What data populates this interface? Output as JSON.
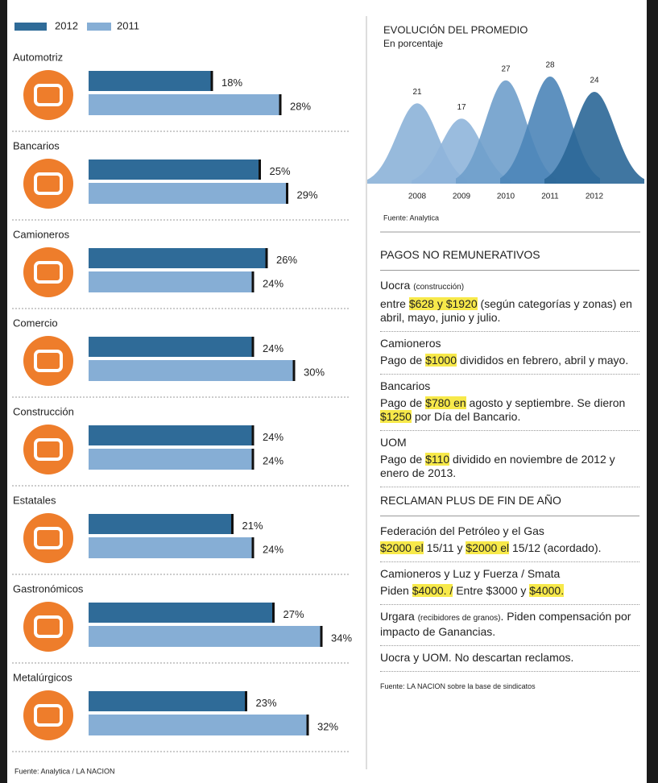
{
  "chart_data": [
    {
      "type": "bar",
      "categories": [
        "Automotriz",
        "Bancarios",
        "Camioneros",
        "Comercio",
        "Construcción",
        "Estatales",
        "Gastronómicos",
        "Metalúrgicos"
      ],
      "series": [
        {
          "name": "2012",
          "color": "#2f6b98",
          "values": [
            18,
            25,
            26,
            24,
            24,
            21,
            27,
            23
          ],
          "value_labels": [
            "18%",
            "25%",
            "26%",
            "24%",
            "24%",
            "21%",
            "27%",
            "23%"
          ]
        },
        {
          "name": "2011",
          "color": "#86aed5",
          "values": [
            28,
            29,
            24,
            30,
            24,
            24,
            34,
            32
          ],
          "value_labels": [
            "28%",
            "29%",
            "24%",
            "30%",
            "24%",
            "24%",
            "34%",
            "32%"
          ]
        }
      ],
      "source": "Fuente: Analytica / LA NACION"
    },
    {
      "type": "area",
      "title": "EVOLUCIÓN DEL PROMEDIO",
      "subtitle": "En porcentaje",
      "categories": [
        "2008",
        "2009",
        "2010",
        "2011",
        "2012"
      ],
      "values": [
        21,
        17,
        27,
        28,
        24
      ],
      "colors": [
        "#8cb2d8",
        "#8fb5da",
        "#6f9fcb",
        "#4d85b8",
        "#2b6797"
      ],
      "source": "Fuente: Analytica"
    }
  ],
  "notes": {
    "sections": [
      {
        "heading": "PAGOS NO REMUNERATIVOS",
        "items": [
          {
            "title": "Uocra",
            "note": "(construcción)",
            "body": [
              "entre ",
              {
                "text": "$628 y $1920",
                "style": "mark"
              },
              " (según categorías y zonas) en abril, mayo, junio y julio."
            ]
          },
          {
            "title": "Camioneros",
            "body": [
              "Pago de ",
              {
                "text": "$1000",
                "style": "mark"
              },
              " divididos en febrero, abril y mayo."
            ]
          },
          {
            "title": "Bancarios",
            "body": [
              "Pago de ",
              {
                "text": "$780 en",
                "style": "mark"
              },
              " agosto y septiembre. Se dieron ",
              {
                "text": "$1250",
                "style": "mark"
              },
              " por Día del Bancario."
            ]
          },
          {
            "title": "UOM",
            "body": [
              "Pago de ",
              {
                "text": "$110",
                "style": "mark"
              },
              " dividido en noviembre de 2012 y enero de 2013."
            ]
          }
        ]
      },
      {
        "heading": "RECLAMAN PLUS DE FIN DE AÑO",
        "items": [
          {
            "title": "Federación del Petróleo y el Gas",
            "body": [
              {
                "text": "$2000 el",
                "style": "mark"
              },
              " 15/11 y ",
              {
                "text": "$2000 el",
                "style": "mark"
              },
              " 15/12 (acordado)."
            ]
          },
          {
            "title": "Camioneros y Luz y Fuerza / Smata",
            "body": [
              "Piden ",
              {
                "text": "$4000. /",
                "style": "mark"
              },
              " Entre $3000 y ",
              {
                "text": "$4000.",
                "style": "mark"
              }
            ]
          },
          {
            "body": [
              "Urgara ",
              {
                "text": "(recibidores de granos)",
                "style": "small"
              },
              ". Piden compensación por impacto de Ganancias."
            ]
          },
          {
            "body": [
              "Uocra y UOM. No descartan reclamos."
            ]
          }
        ]
      }
    ],
    "source": "Fuente: LA NACION sobre la base de sindicatos"
  }
}
